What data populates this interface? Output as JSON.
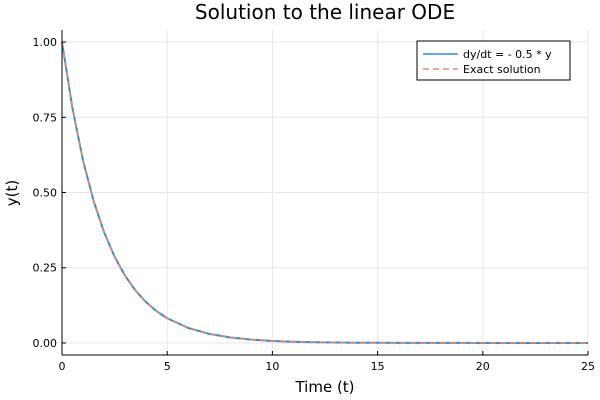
{
  "chart_data": {
    "type": "line",
    "title": "Solution to the linear ODE",
    "xlabel": "Time (t)",
    "ylabel": "y(t)",
    "xlim": [
      0,
      25
    ],
    "ylim": [
      -0.04,
      1.04
    ],
    "xticks": [
      0,
      5,
      10,
      15,
      20,
      25
    ],
    "xtick_labels": [
      "0",
      "5",
      "10",
      "15",
      "20",
      "25"
    ],
    "yticks": [
      0.0,
      0.25,
      0.5,
      0.75,
      1.0
    ],
    "ytick_labels": [
      "0.00",
      "0.25",
      "0.50",
      "0.75",
      "1.00"
    ],
    "grid": true,
    "legend_position": "top-right",
    "x": [
      0,
      0.5,
      1,
      1.5,
      2,
      2.5,
      3,
      3.5,
      4,
      4.5,
      5,
      6,
      7,
      8,
      9,
      10,
      11,
      12,
      13,
      14,
      15,
      16,
      17,
      18,
      19,
      20,
      21,
      22,
      23,
      24,
      25
    ],
    "series": [
      {
        "name": "dy/dt = - 0.5 * y",
        "color": "#2f8ed6",
        "style": "solid",
        "values": [
          1.0,
          0.7788,
          0.6065,
          0.4724,
          0.3679,
          0.2865,
          0.2231,
          0.1738,
          0.1353,
          0.1054,
          0.0821,
          0.0498,
          0.0302,
          0.0183,
          0.0111,
          0.0067,
          0.0041,
          0.0025,
          0.0015,
          0.0009,
          0.0006,
          0.0003,
          0.0002,
          0.0001,
          0.0001,
          0.0,
          0.0,
          0.0,
          0.0,
          0.0,
          0.0
        ]
      },
      {
        "name": "Exact solution",
        "color": "#e2896b",
        "style": "dashed",
        "values": [
          1.0,
          0.7788,
          0.6065,
          0.4724,
          0.3679,
          0.2865,
          0.2231,
          0.1738,
          0.1353,
          0.1054,
          0.0821,
          0.0498,
          0.0302,
          0.0183,
          0.0111,
          0.0067,
          0.0041,
          0.0025,
          0.0015,
          0.0009,
          0.0006,
          0.0003,
          0.0002,
          0.0001,
          0.0001,
          0.0,
          0.0,
          0.0,
          0.0,
          0.0,
          0.0
        ]
      }
    ]
  }
}
